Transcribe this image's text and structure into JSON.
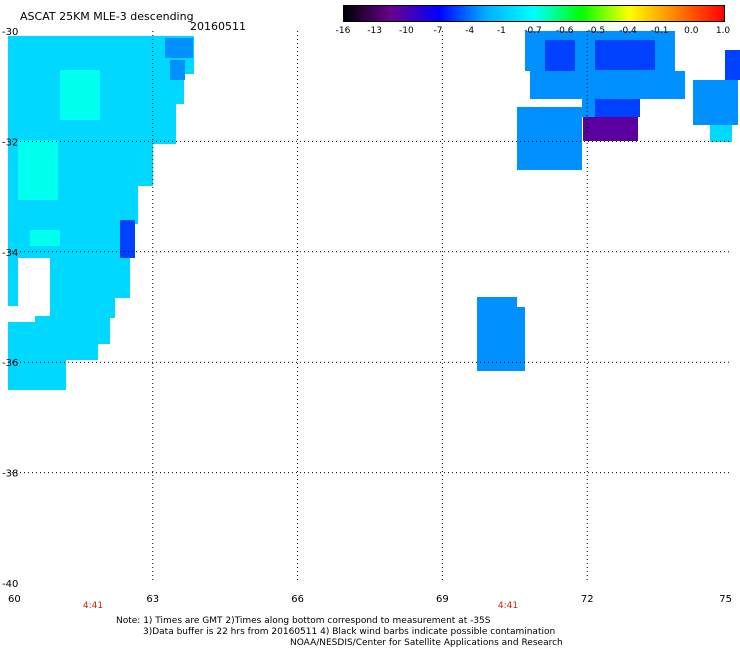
{
  "header": {
    "title": "ASCAT 25KM MLE-3 descending",
    "date": "20160511"
  },
  "colorbar": {
    "labels": [
      "-16",
      "-13",
      "-10",
      "-7",
      "-4",
      "-1",
      "-0.7",
      "-0.6",
      "-0.5",
      "-0.4",
      "-0.1",
      "0.0",
      "1.0"
    ],
    "colors": [
      "#000000",
      "#6a0090",
      "#0000ff",
      "#00b0ff",
      "#00ffff",
      "#00ff00",
      "#ffff00",
      "#ff8000",
      "#ff0000"
    ]
  },
  "map": {
    "lat_labels": [
      "-30",
      "-32",
      "-34",
      "-36",
      "-38",
      "-40"
    ],
    "lon_labels": [
      "60",
      "63",
      "66",
      "69",
      "72",
      "75"
    ],
    "time_labels": [
      "4:41",
      "4:41"
    ],
    "colors": {
      "light_cyan": "#00d8ff",
      "cyan": "#00ffee",
      "mid_blue": "#0090ff",
      "blue": "#0040ff",
      "purple": "#5a00a0"
    }
  },
  "notes": {
    "line1": "Note: 1) Times are GMT 2)Times along bottom correspond to measurement at -35S",
    "line2": "3)Data buffer is 22 hrs from 20160511 4) Black wind barbs indicate possible contamination",
    "line3": "NOAA/NESDIS/Center for Satellite Applications and Research"
  }
}
